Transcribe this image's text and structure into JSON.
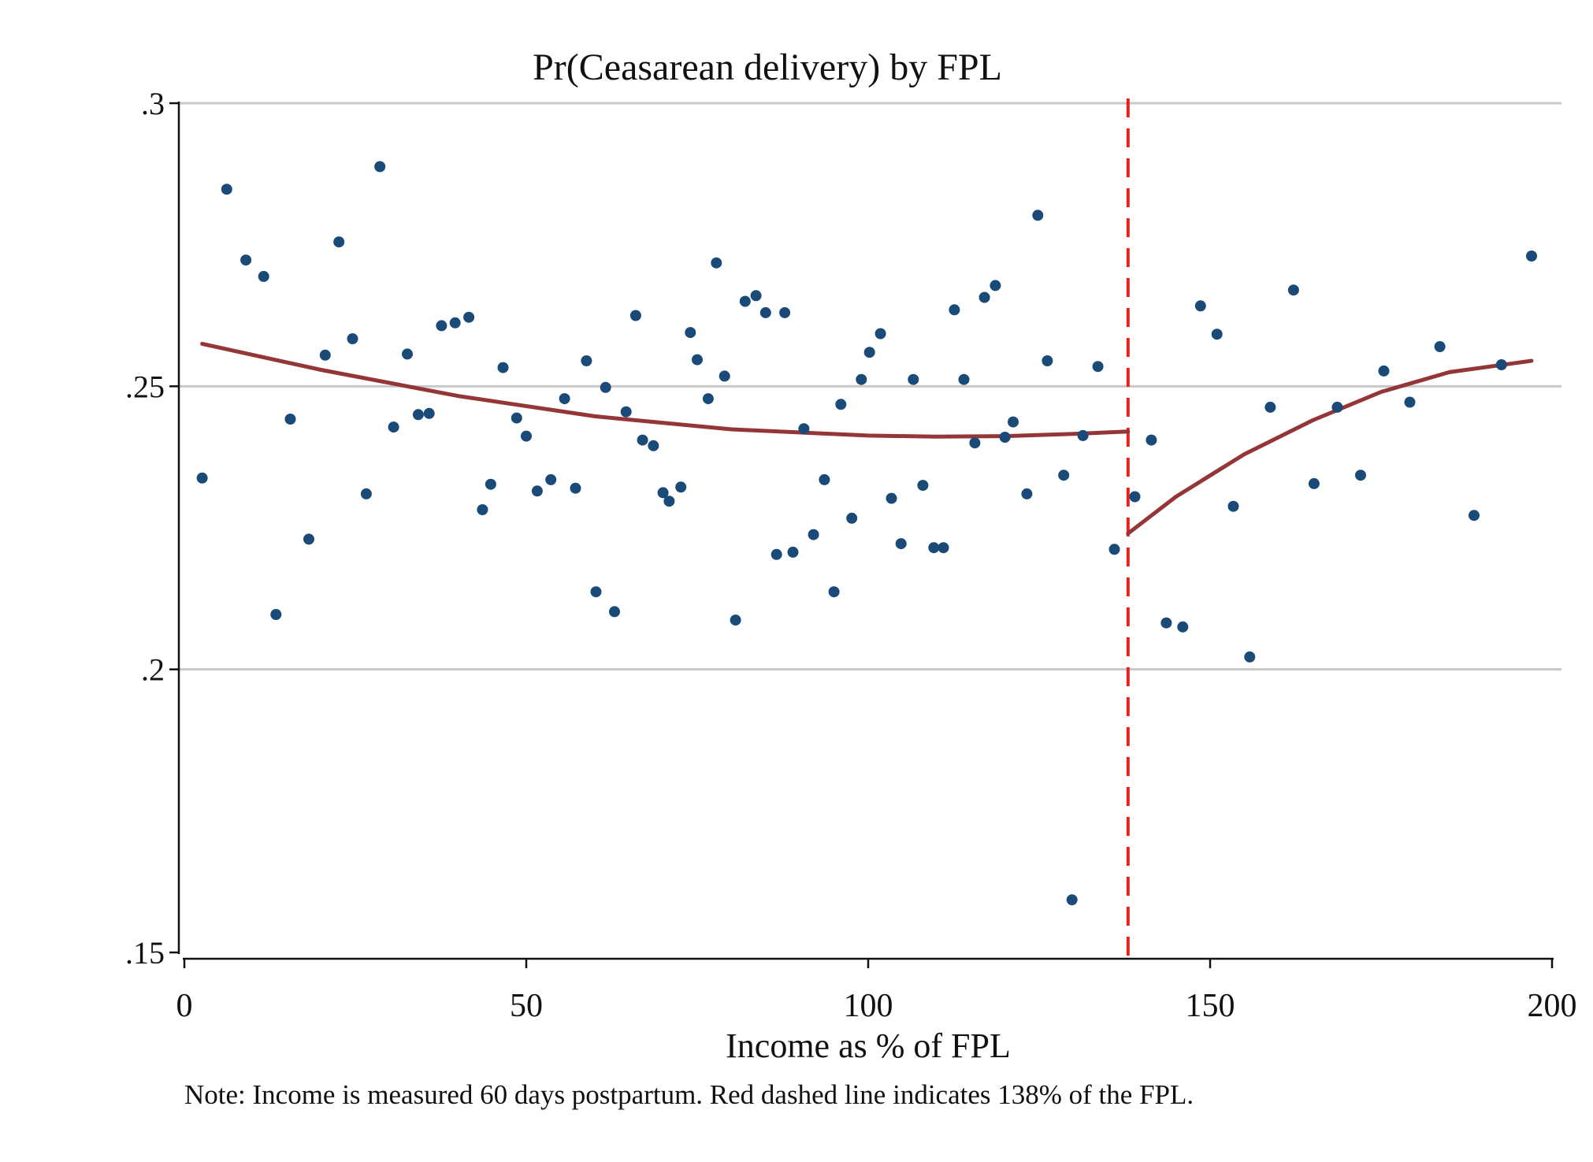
{
  "chart_data": {
    "type": "scatter",
    "title": "Pr(Ceasarean delivery) by FPL",
    "xlabel": "Income as % of FPL",
    "ylabel": "",
    "xlim": [
      0,
      200
    ],
    "ylim": [
      0.15,
      0.3
    ],
    "x_ticks": [
      0,
      50,
      100,
      150,
      200
    ],
    "x_tick_labels": [
      "0",
      "50",
      "100",
      "150",
      "200"
    ],
    "y_ticks": [
      0.15,
      0.2,
      0.25,
      0.3
    ],
    "y_tick_labels": [
      ".15",
      ".2",
      ".25",
      ".3"
    ],
    "grid": "horizontal",
    "colors": {
      "points": "#1a4a78",
      "fit": "#943538",
      "cutoff": "#e8231f",
      "grid": "#c8c8c8"
    },
    "cutoff_x": 138,
    "points": [
      [
        2.6,
        0.2338
      ],
      [
        6.2,
        0.2848
      ],
      [
        9.0,
        0.2723
      ],
      [
        11.6,
        0.2694
      ],
      [
        13.4,
        0.2097
      ],
      [
        15.5,
        0.2442
      ],
      [
        18.2,
        0.223
      ],
      [
        20.6,
        0.2555
      ],
      [
        22.6,
        0.2755
      ],
      [
        24.6,
        0.2584
      ],
      [
        26.6,
        0.231
      ],
      [
        28.6,
        0.2888
      ],
      [
        30.6,
        0.2428
      ],
      [
        32.6,
        0.2557
      ],
      [
        34.2,
        0.245
      ],
      [
        35.8,
        0.2452
      ],
      [
        37.6,
        0.2607
      ],
      [
        39.6,
        0.2612
      ],
      [
        41.6,
        0.2622
      ],
      [
        43.6,
        0.2282
      ],
      [
        44.8,
        0.2327
      ],
      [
        46.6,
        0.2533
      ],
      [
        48.6,
        0.2444
      ],
      [
        50.0,
        0.2412
      ],
      [
        51.6,
        0.2315
      ],
      [
        53.6,
        0.2335
      ],
      [
        55.6,
        0.2478
      ],
      [
        57.2,
        0.232
      ],
      [
        58.8,
        0.2545
      ],
      [
        60.2,
        0.2137
      ],
      [
        61.6,
        0.2498
      ],
      [
        62.9,
        0.2102
      ],
      [
        64.6,
        0.2455
      ],
      [
        66.0,
        0.2625
      ],
      [
        67.0,
        0.2405
      ],
      [
        68.6,
        0.2395
      ],
      [
        70.0,
        0.2312
      ],
      [
        70.9,
        0.2297
      ],
      [
        72.6,
        0.2322
      ],
      [
        74.0,
        0.2595
      ],
      [
        75.0,
        0.2547
      ],
      [
        76.6,
        0.2478
      ],
      [
        77.8,
        0.2718
      ],
      [
        79.0,
        0.2518
      ],
      [
        80.6,
        0.2087
      ],
      [
        82.0,
        0.265
      ],
      [
        83.6,
        0.266
      ],
      [
        85.0,
        0.263
      ],
      [
        86.6,
        0.2203
      ],
      [
        87.8,
        0.263
      ],
      [
        89.0,
        0.2207
      ],
      [
        90.6,
        0.2425
      ],
      [
        92.0,
        0.2238
      ],
      [
        93.6,
        0.2335
      ],
      [
        95.0,
        0.2137
      ],
      [
        96.0,
        0.2468
      ],
      [
        97.6,
        0.2267
      ],
      [
        99.0,
        0.2512
      ],
      [
        100.2,
        0.256
      ],
      [
        101.8,
        0.2593
      ],
      [
        103.4,
        0.2302
      ],
      [
        104.8,
        0.2222
      ],
      [
        106.6,
        0.2512
      ],
      [
        108.0,
        0.2325
      ],
      [
        109.6,
        0.2215
      ],
      [
        111.0,
        0.2215
      ],
      [
        112.6,
        0.2635
      ],
      [
        114.0,
        0.2512
      ],
      [
        115.6,
        0.24
      ],
      [
        117.0,
        0.2657
      ],
      [
        118.6,
        0.2678
      ],
      [
        120.0,
        0.241
      ],
      [
        121.2,
        0.2437
      ],
      [
        123.2,
        0.231
      ],
      [
        124.8,
        0.2802
      ],
      [
        126.2,
        0.2545
      ],
      [
        128.6,
        0.2343
      ],
      [
        129.8,
        0.1593
      ],
      [
        131.4,
        0.2413
      ],
      [
        133.6,
        0.2535
      ],
      [
        136.0,
        0.2212
      ],
      [
        139.0,
        0.2305
      ],
      [
        141.4,
        0.2405
      ],
      [
        143.6,
        0.2082
      ],
      [
        146.0,
        0.2075
      ],
      [
        148.6,
        0.2642
      ],
      [
        151.0,
        0.2592
      ],
      [
        153.4,
        0.2288
      ],
      [
        155.8,
        0.2022
      ],
      [
        158.8,
        0.2463
      ],
      [
        162.2,
        0.267
      ],
      [
        165.2,
        0.2328
      ],
      [
        168.6,
        0.2463
      ],
      [
        172.0,
        0.2343
      ],
      [
        175.4,
        0.2527
      ],
      [
        179.2,
        0.2472
      ],
      [
        183.6,
        0.257
      ],
      [
        188.6,
        0.2272
      ],
      [
        192.6,
        0.2538
      ],
      [
        197.0,
        0.273
      ]
    ],
    "fit_segments": [
      [
        [
          2.6,
          0.2575
        ],
        [
          20,
          0.2529
        ],
        [
          40,
          0.2483
        ],
        [
          60,
          0.2447
        ],
        [
          80,
          0.2424
        ],
        [
          100,
          0.2413
        ],
        [
          110,
          0.2411
        ],
        [
          120,
          0.2412
        ],
        [
          130,
          0.2416
        ],
        [
          138,
          0.242
        ]
      ],
      [
        [
          138,
          0.224
        ],
        [
          145,
          0.2305
        ],
        [
          155,
          0.238
        ],
        [
          165,
          0.244
        ],
        [
          175,
          0.249
        ],
        [
          185,
          0.2525
        ],
        [
          197,
          0.2545
        ]
      ]
    ],
    "note": "Note: Income is measured 60 days postpartum. Red dashed line indicates 138% of the FPL."
  }
}
